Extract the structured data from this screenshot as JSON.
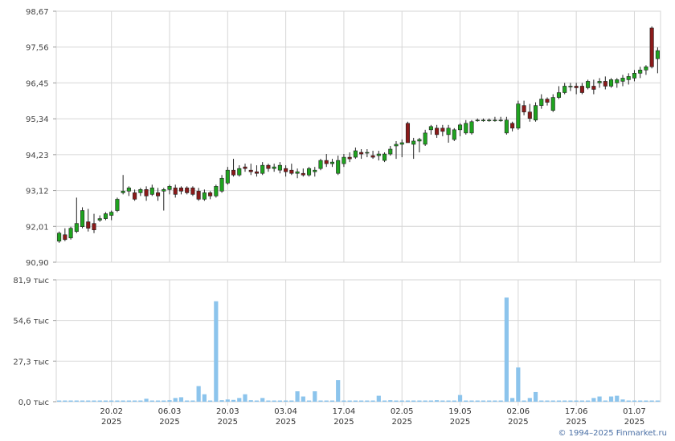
{
  "copyright": "© 1994–2025 Finmarket.ru",
  "colors": {
    "up": "#1fa31f",
    "down": "#8b1a1a",
    "wick": "#222222",
    "volume": "#8cc4ec",
    "grid": "#d6d6d6",
    "axis": "#999999"
  },
  "chart_data": [
    {
      "type": "candlestick",
      "title": "",
      "ylim": [
        90.9,
        98.67
      ],
      "yticks": [
        "98,67",
        "97,56",
        "96,45",
        "95,34",
        "94,23",
        "93,12",
        "92,01",
        "90,90"
      ],
      "ytick_values": [
        98.67,
        97.56,
        96.45,
        95.34,
        94.23,
        93.12,
        92.01,
        90.9
      ],
      "xticks": [
        {
          "date": "20.02",
          "year": "2025",
          "index": 9
        },
        {
          "date": "06.03",
          "year": "2025",
          "index": 19
        },
        {
          "date": "20.03",
          "year": "2025",
          "index": 29
        },
        {
          "date": "03.04",
          "year": "2025",
          "index": 39
        },
        {
          "date": "17.04",
          "year": "2025",
          "index": 49
        },
        {
          "date": "02.05",
          "year": "2025",
          "index": 59
        },
        {
          "date": "19.05",
          "year": "2025",
          "index": 69
        },
        {
          "date": "02.06",
          "year": "2025",
          "index": 79
        },
        {
          "date": "17.06",
          "year": "2025",
          "index": 89
        },
        {
          "date": "01.07",
          "year": "2025",
          "index": 99
        }
      ],
      "ohlc": [
        [
          91.55,
          91.85,
          91.5,
          91.8
        ],
        [
          91.75,
          91.95,
          91.55,
          91.6
        ],
        [
          91.65,
          92.0,
          91.6,
          91.95
        ],
        [
          91.85,
          92.9,
          91.8,
          92.1
        ],
        [
          92.0,
          92.6,
          91.95,
          92.5
        ],
        [
          92.15,
          92.55,
          91.85,
          91.95
        ],
        [
          92.1,
          92.4,
          91.8,
          91.9
        ],
        [
          92.2,
          92.35,
          92.15,
          92.25
        ],
        [
          92.25,
          92.45,
          92.2,
          92.4
        ],
        [
          92.35,
          92.5,
          92.2,
          92.45
        ],
        [
          92.5,
          92.9,
          92.45,
          92.85
        ],
        [
          93.05,
          93.6,
          93.0,
          93.1
        ],
        [
          93.1,
          93.25,
          92.95,
          93.2
        ],
        [
          93.05,
          93.15,
          92.8,
          92.85
        ],
        [
          93.05,
          93.2,
          92.95,
          93.15
        ],
        [
          93.15,
          93.25,
          92.8,
          92.95
        ],
        [
          93.0,
          93.3,
          92.95,
          93.2
        ],
        [
          93.05,
          93.2,
          92.8,
          92.95
        ],
        [
          93.1,
          93.2,
          92.5,
          93.15
        ],
        [
          93.15,
          93.3,
          93.0,
          93.25
        ],
        [
          93.2,
          93.3,
          92.9,
          93.0
        ],
        [
          93.2,
          93.25,
          93.0,
          93.1
        ],
        [
          93.2,
          93.25,
          93.0,
          93.05
        ],
        [
          93.2,
          93.25,
          92.95,
          93.0
        ],
        [
          93.1,
          93.2,
          92.8,
          92.85
        ],
        [
          92.85,
          93.15,
          92.8,
          93.05
        ],
        [
          93.05,
          93.1,
          92.85,
          92.95
        ],
        [
          92.95,
          93.3,
          92.9,
          93.25
        ],
        [
          93.1,
          93.6,
          93.05,
          93.5
        ],
        [
          93.35,
          93.85,
          93.3,
          93.75
        ],
        [
          93.75,
          94.1,
          93.55,
          93.6
        ],
        [
          93.6,
          93.9,
          93.55,
          93.8
        ],
        [
          93.85,
          93.95,
          93.7,
          93.8
        ],
        [
          93.75,
          93.95,
          93.6,
          93.7
        ],
        [
          93.7,
          93.9,
          93.55,
          93.65
        ],
        [
          93.65,
          94.0,
          93.6,
          93.9
        ],
        [
          93.9,
          93.95,
          93.7,
          93.8
        ],
        [
          93.8,
          93.95,
          93.7,
          93.85
        ],
        [
          93.75,
          94.0,
          93.65,
          93.9
        ],
        [
          93.8,
          93.9,
          93.55,
          93.7
        ],
        [
          93.75,
          93.95,
          93.6,
          93.65
        ],
        [
          93.65,
          93.8,
          93.5,
          93.7
        ],
        [
          93.65,
          93.8,
          93.55,
          93.6
        ],
        [
          93.6,
          93.85,
          93.55,
          93.8
        ],
        [
          93.7,
          93.85,
          93.55,
          93.75
        ],
        [
          93.8,
          94.1,
          93.75,
          94.05
        ],
        [
          94.05,
          94.25,
          93.85,
          93.95
        ],
        [
          93.95,
          94.1,
          93.85,
          94.0
        ],
        [
          93.65,
          94.2,
          93.6,
          94.05
        ],
        [
          93.95,
          94.25,
          93.85,
          94.15
        ],
        [
          94.15,
          94.3,
          94.0,
          94.1
        ],
        [
          94.15,
          94.45,
          94.1,
          94.35
        ],
        [
          94.3,
          94.4,
          94.1,
          94.25
        ],
        [
          94.3,
          94.4,
          94.15,
          94.3
        ],
        [
          94.2,
          94.35,
          94.1,
          94.15
        ],
        [
          94.2,
          94.35,
          94.05,
          94.25
        ],
        [
          94.05,
          94.3,
          94.0,
          94.25
        ],
        [
          94.25,
          94.5,
          94.2,
          94.4
        ],
        [
          94.5,
          94.65,
          94.1,
          94.55
        ],
        [
          94.55,
          94.7,
          94.15,
          94.6
        ],
        [
          95.2,
          95.25,
          94.6,
          94.6
        ],
        [
          94.55,
          94.75,
          94.1,
          94.65
        ],
        [
          94.65,
          94.75,
          94.3,
          94.7
        ],
        [
          94.55,
          95.0,
          94.5,
          94.9
        ],
        [
          95.0,
          95.15,
          94.85,
          95.1
        ],
        [
          95.05,
          95.15,
          94.75,
          94.85
        ],
        [
          95.05,
          95.15,
          94.8,
          94.95
        ],
        [
          94.85,
          95.15,
          94.6,
          95.05
        ],
        [
          94.7,
          95.05,
          94.65,
          95.0
        ],
        [
          95.0,
          95.2,
          94.8,
          95.15
        ],
        [
          94.9,
          95.3,
          94.85,
          95.2
        ],
        [
          94.9,
          95.3,
          94.85,
          95.25
        ],
        [
          95.3,
          95.35,
          95.25,
          95.3
        ],
        [
          95.3,
          95.35,
          95.25,
          95.3
        ],
        [
          95.3,
          95.35,
          95.25,
          95.3
        ],
        [
          95.3,
          95.4,
          95.25,
          95.3
        ],
        [
          95.3,
          95.4,
          95.25,
          95.3
        ],
        [
          94.9,
          95.4,
          94.85,
          95.3
        ],
        [
          95.2,
          95.25,
          94.95,
          95.05
        ],
        [
          95.05,
          95.9,
          95.0,
          95.8
        ],
        [
          95.75,
          95.9,
          95.45,
          95.55
        ],
        [
          95.55,
          95.8,
          95.25,
          95.35
        ],
        [
          95.3,
          95.85,
          95.25,
          95.75
        ],
        [
          95.75,
          96.1,
          95.65,
          95.95
        ],
        [
          95.95,
          96.0,
          95.75,
          95.85
        ],
        [
          95.6,
          96.1,
          95.55,
          96.0
        ],
        [
          96.0,
          96.35,
          95.95,
          96.15
        ],
        [
          96.15,
          96.45,
          96.1,
          96.35
        ],
        [
          96.35,
          96.45,
          96.2,
          96.35
        ],
        [
          96.35,
          96.45,
          96.1,
          96.3
        ],
        [
          96.35,
          96.45,
          96.1,
          96.15
        ],
        [
          96.3,
          96.55,
          96.25,
          96.5
        ],
        [
          96.35,
          96.55,
          96.1,
          96.25
        ],
        [
          96.45,
          96.6,
          96.3,
          96.5
        ],
        [
          96.5,
          96.65,
          96.25,
          96.35
        ],
        [
          96.35,
          96.6,
          96.3,
          96.55
        ],
        [
          96.45,
          96.6,
          96.3,
          96.55
        ],
        [
          96.5,
          96.7,
          96.35,
          96.6
        ],
        [
          96.55,
          96.75,
          96.4,
          96.65
        ],
        [
          96.6,
          96.85,
          96.5,
          96.75
        ],
        [
          96.75,
          96.95,
          96.6,
          96.85
        ],
        [
          96.85,
          97.0,
          96.7,
          96.95
        ],
        [
          98.15,
          98.2,
          96.9,
          96.95
        ],
        [
          97.2,
          97.55,
          96.75,
          97.45
        ]
      ]
    },
    {
      "type": "bar",
      "title": "",
      "ylim": [
        0,
        81.9
      ],
      "yticks": [
        "81,9 тыс",
        "54,6 тыс",
        "27,3 тыс",
        "0,0 тыс"
      ],
      "ytick_values": [
        81.9,
        54.6,
        27.3,
        0.0
      ],
      "values": [
        0.5,
        0.4,
        0.4,
        0.5,
        0.4,
        0.5,
        0.4,
        0.5,
        0.4,
        0.5,
        0.6,
        0.5,
        0.4,
        0.3,
        0.4,
        2.0,
        0.5,
        0.4,
        0.6,
        1.0,
        2.5,
        3.0,
        0.5,
        0.4,
        10.5,
        5.0,
        0.6,
        67.5,
        1.0,
        1.5,
        1.2,
        2.5,
        5.0,
        1.0,
        0.5,
        2.5,
        0.5,
        0.4,
        0.5,
        0.4,
        0.5,
        7.0,
        3.5,
        0.5,
        7.0,
        0.4,
        0.5,
        0.6,
        14.5,
        0.4,
        0.5,
        0.4,
        0.5,
        0.4,
        0.5,
        4.0,
        0.6,
        1.0,
        0.5,
        0.4,
        0.5,
        0.4,
        0.5,
        0.4,
        0.4,
        1.0,
        0.5,
        0.4,
        0.6,
        4.5,
        0.5,
        0.4,
        0.5,
        0.6,
        0.5,
        0.4,
        0.5,
        70.0,
        2.5,
        23.0,
        0.5,
        2.5,
        6.5,
        0.5,
        0.4,
        0.5,
        0.4,
        0.5,
        0.6,
        0.5,
        0.4,
        0.5,
        2.5,
        3.5,
        0.5,
        3.5,
        4.0,
        1.5,
        0.5,
        0.4,
        0.5,
        0.4,
        0.3,
        0.5
      ]
    }
  ]
}
